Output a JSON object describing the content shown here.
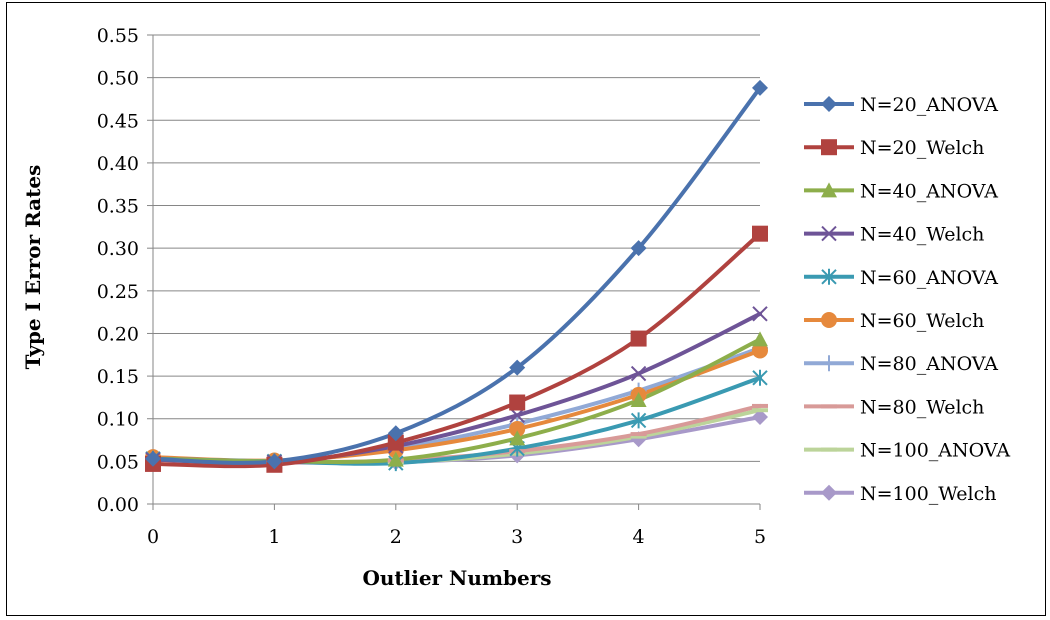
{
  "chart_data": {
    "type": "line",
    "title": "",
    "xlabel": "Outlier Numbers",
    "ylabel": "Type I Error Rates",
    "x": [
      0,
      1,
      2,
      3,
      4,
      5
    ],
    "xlim": [
      0,
      5
    ],
    "ylim": [
      0,
      0.55
    ],
    "y_ticks": [
      "0.00",
      "0.05",
      "0.10",
      "0.15",
      "0.20",
      "0.25",
      "0.30",
      "0.35",
      "0.40",
      "0.45",
      "0.50",
      "0.55"
    ],
    "x_ticks": [
      "0",
      "1",
      "2",
      "3",
      "4",
      "5"
    ],
    "grid": "horizontal",
    "legend_position": "right",
    "smooth": true,
    "series": [
      {
        "name": "N=20_ANOVA",
        "color": "#4A72AD",
        "marker": "diamond",
        "values": [
          0.053,
          0.05,
          0.083,
          0.16,
          0.3,
          0.488
        ]
      },
      {
        "name": "N=20_Welch",
        "color": "#B0423F",
        "marker": "square",
        "values": [
          0.047,
          0.046,
          0.072,
          0.119,
          0.194,
          0.317
        ]
      },
      {
        "name": "N=40_ANOVA",
        "color": "#8DAE4B",
        "marker": "triangle",
        "values": [
          0.053,
          0.05,
          0.052,
          0.077,
          0.122,
          0.193
        ]
      },
      {
        "name": "N=40_Welch",
        "color": "#6E5497",
        "marker": "x",
        "values": [
          0.052,
          0.049,
          0.068,
          0.104,
          0.153,
          0.223
        ]
      },
      {
        "name": "N=60_ANOVA",
        "color": "#3A9AB2",
        "marker": "star",
        "values": [
          0.053,
          0.05,
          0.048,
          0.065,
          0.098,
          0.148
        ]
      },
      {
        "name": "N=60_Welch",
        "color": "#E6893C",
        "marker": "circle",
        "values": [
          0.055,
          0.051,
          0.063,
          0.088,
          0.128,
          0.18
        ]
      },
      {
        "name": "N=80_ANOVA",
        "color": "#91A9D6",
        "marker": "plus",
        "values": [
          0.055,
          0.05,
          0.065,
          0.094,
          0.133,
          0.183
        ]
      },
      {
        "name": "N=80_Welch",
        "color": "#D89A98",
        "marker": "dash",
        "values": [
          0.052,
          0.049,
          0.051,
          0.062,
          0.082,
          0.115
        ]
      },
      {
        "name": "N=100_ANOVA",
        "color": "#BCD49A",
        "marker": "dash",
        "values": [
          0.053,
          0.05,
          0.049,
          0.059,
          0.079,
          0.11
        ]
      },
      {
        "name": "N=100_Welch",
        "color": "#A899C9",
        "marker": "diamond",
        "values": [
          0.053,
          0.049,
          0.049,
          0.057,
          0.076,
          0.102
        ]
      }
    ]
  }
}
